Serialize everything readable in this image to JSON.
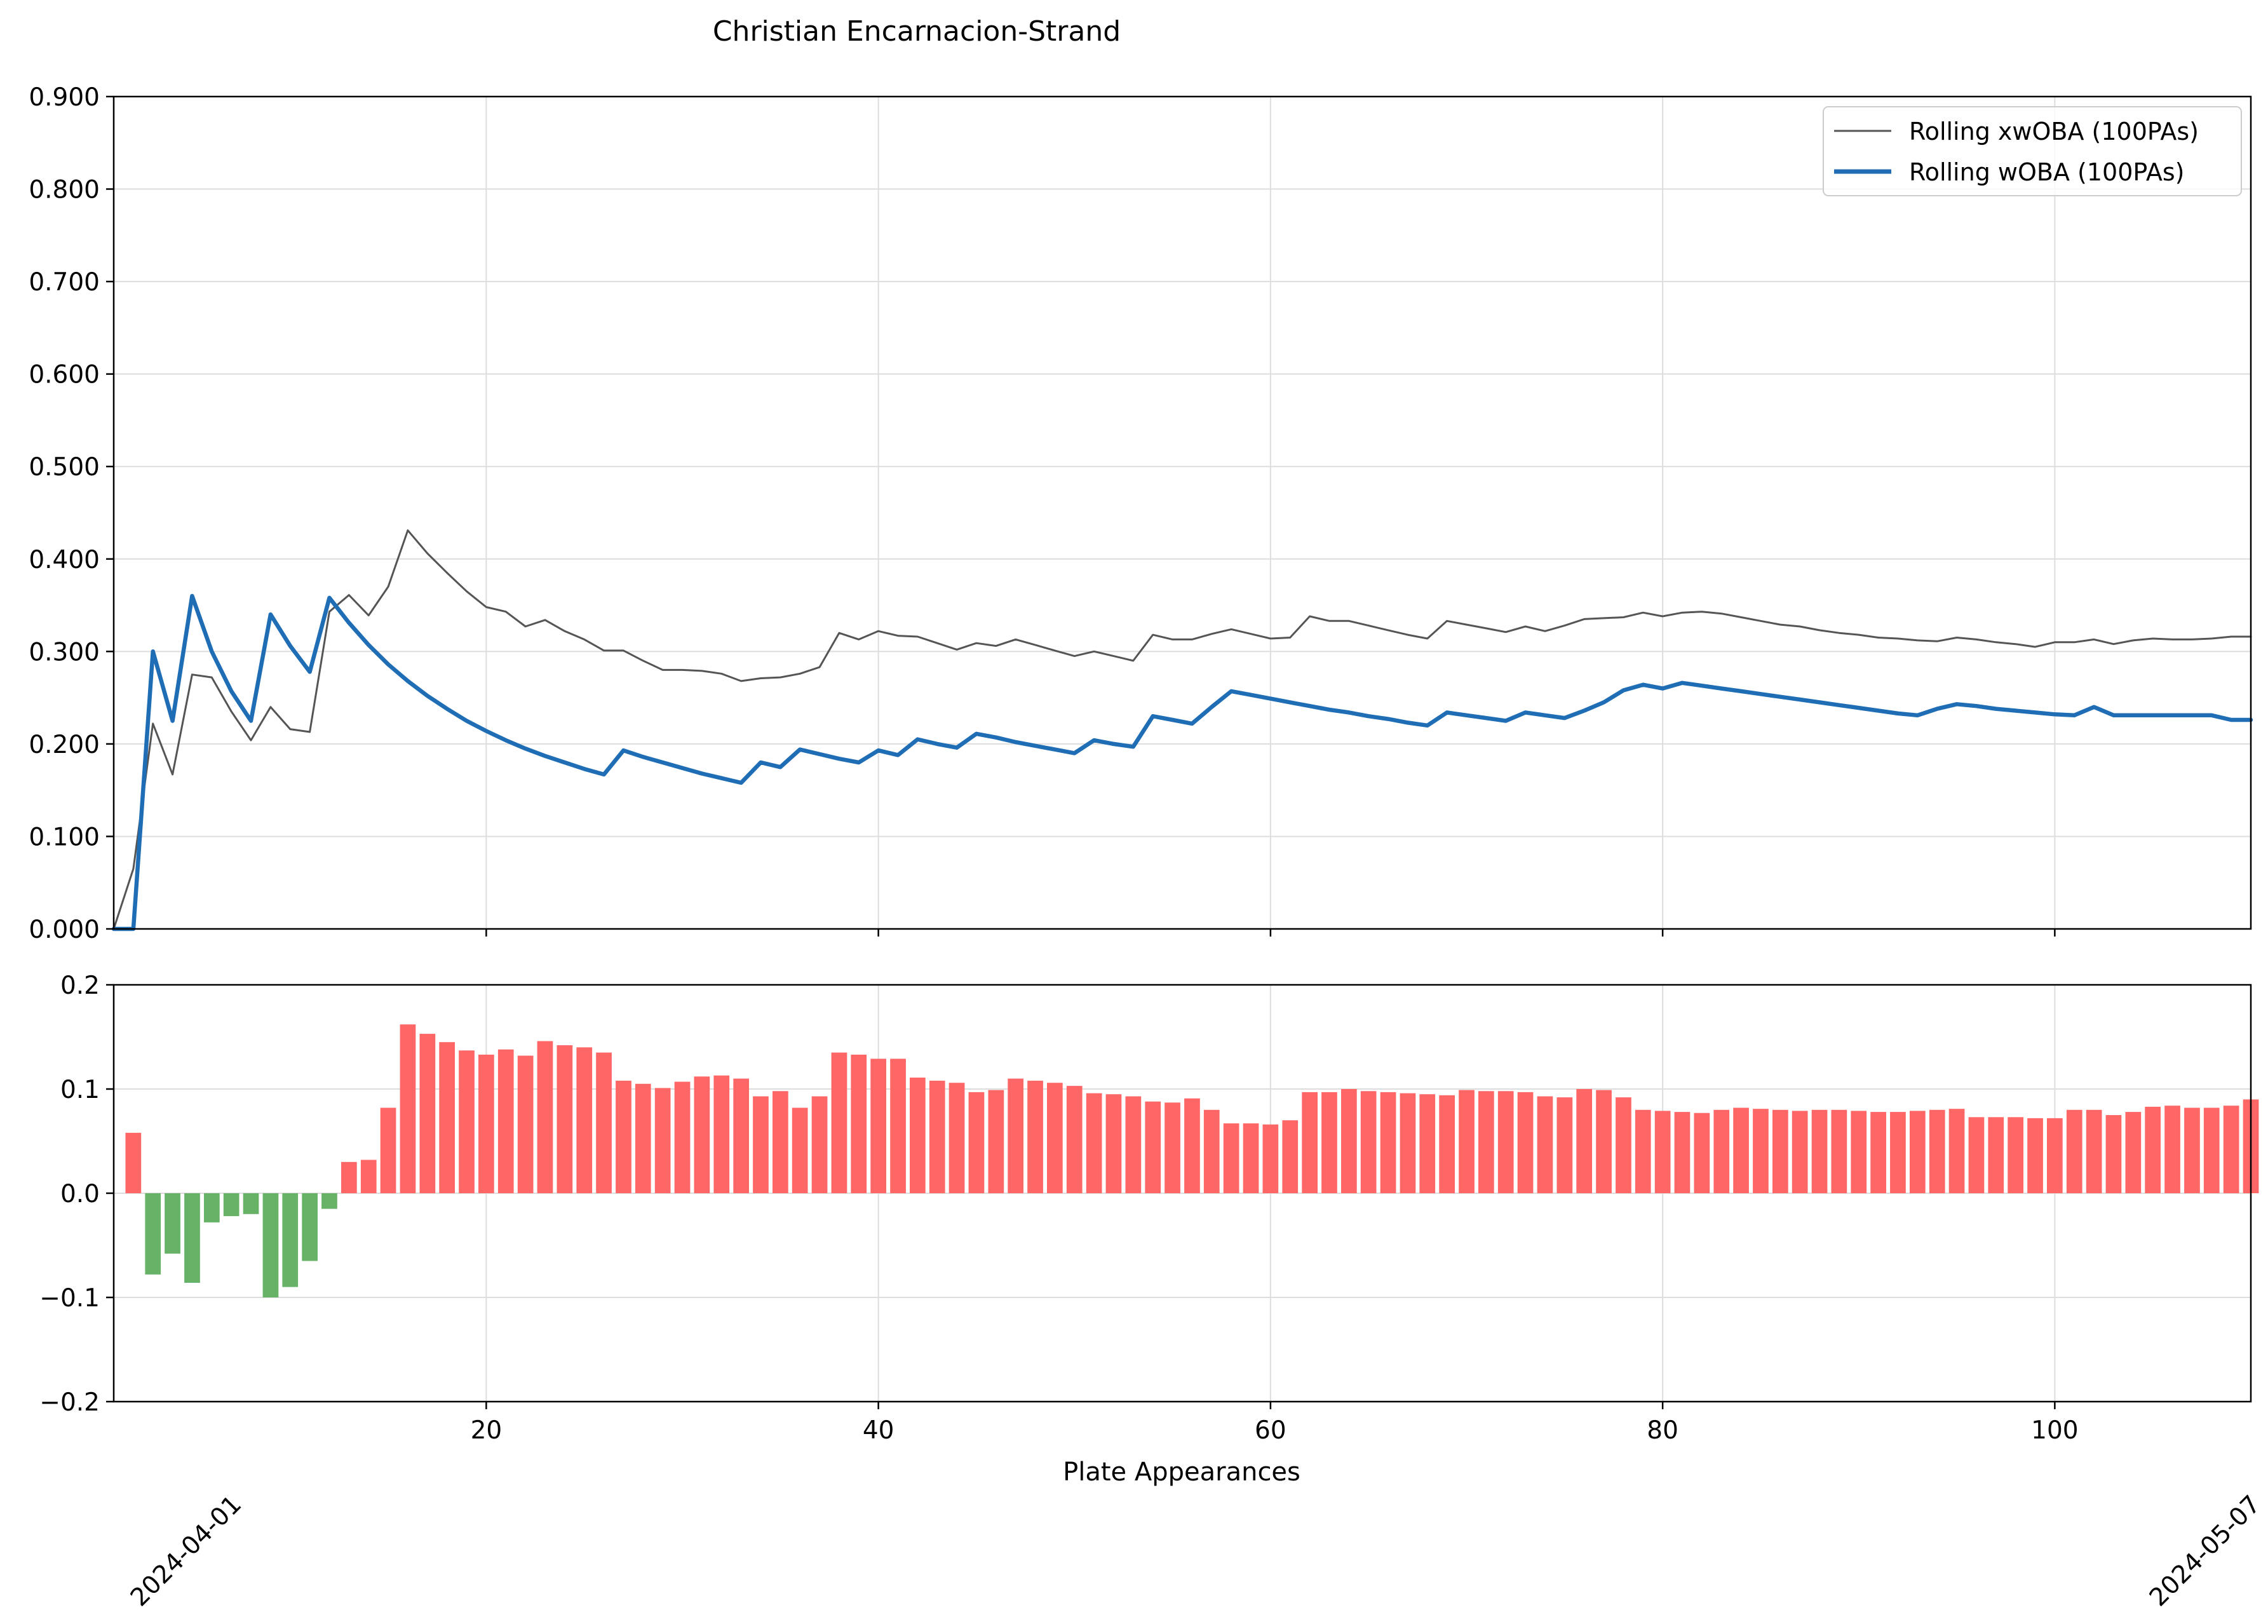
{
  "chart_data": [
    {
      "type": "line",
      "title": "Christian Encarnacion-Strand",
      "xlabel": "",
      "ylabel": "",
      "xlim": [
        1,
        110
      ],
      "ylim": [
        0,
        0.9
      ],
      "yticks": [
        0.0,
        0.1,
        0.2,
        0.3,
        0.4,
        0.5,
        0.6,
        0.7,
        0.8,
        0.9
      ],
      "ytick_labels": [
        "0.000",
        "0.100",
        "0.200",
        "0.300",
        "0.400",
        "0.500",
        "0.600",
        "0.700",
        "0.800",
        "0.900"
      ],
      "grid": true,
      "legend": "top-right",
      "series": [
        {
          "name": "Rolling xwOBA (100PAs)",
          "color": "#555555",
          "x": [
            1,
            2,
            3,
            4,
            5,
            6,
            7,
            8,
            9,
            10,
            11,
            12,
            13,
            14,
            15,
            16,
            17,
            18,
            19,
            20,
            21,
            22,
            23,
            24,
            25,
            26,
            27,
            28,
            29,
            30,
            31,
            32,
            33,
            34,
            35,
            36,
            37,
            38,
            39,
            40,
            41,
            42,
            43,
            44,
            45,
            46,
            47,
            48,
            49,
            50,
            51,
            52,
            53,
            54,
            55,
            56,
            57,
            58,
            59,
            60,
            61,
            62,
            63,
            64,
            65,
            66,
            67,
            68,
            69,
            70,
            71,
            72,
            73,
            74,
            75,
            76,
            77,
            78,
            79,
            80,
            81,
            82,
            83,
            84,
            85,
            86,
            87,
            88,
            89,
            90,
            91,
            92,
            93,
            94,
            95,
            96,
            97,
            98,
            99,
            100,
            101,
            102,
            103,
            104,
            105,
            106,
            107,
            108,
            109,
            110
          ],
          "y": [
            0.0,
            0.065,
            0.222,
            0.167,
            0.275,
            0.272,
            0.235,
            0.204,
            0.24,
            0.216,
            0.213,
            0.343,
            0.361,
            0.339,
            0.37,
            0.431,
            0.406,
            0.385,
            0.365,
            0.348,
            0.343,
            0.327,
            0.334,
            0.322,
            0.313,
            0.301,
            0.301,
            0.29,
            0.28,
            0.28,
            0.279,
            0.276,
            0.268,
            0.271,
            0.272,
            0.276,
            0.283,
            0.32,
            0.313,
            0.322,
            0.317,
            0.316,
            0.309,
            0.302,
            0.309,
            0.306,
            0.313,
            0.307,
            0.301,
            0.295,
            0.3,
            0.295,
            0.29,
            0.318,
            0.313,
            0.313,
            0.319,
            0.324,
            0.319,
            0.314,
            0.315,
            0.338,
            0.333,
            0.333,
            0.328,
            0.323,
            0.318,
            0.314,
            0.333,
            0.329,
            0.325,
            0.321,
            0.327,
            0.322,
            0.328,
            0.335,
            0.336,
            0.337,
            0.342,
            0.338,
            0.342,
            0.343,
            0.341,
            0.337,
            0.333,
            0.329,
            0.327,
            0.323,
            0.32,
            0.318,
            0.315,
            0.314,
            0.312,
            0.311,
            0.315,
            0.313,
            0.31,
            0.308,
            0.305,
            0.31,
            0.31,
            0.313,
            0.308,
            0.312,
            0.314,
            0.313,
            0.313,
            0.314,
            0.316,
            0.316
          ]
        },
        {
          "name": "Rolling wOBA (100PAs)",
          "color": "#1f6db5",
          "x": [
            1,
            2,
            3,
            4,
            5,
            6,
            7,
            8,
            9,
            10,
            11,
            12,
            13,
            14,
            15,
            16,
            17,
            18,
            19,
            20,
            21,
            22,
            23,
            24,
            25,
            26,
            27,
            28,
            29,
            30,
            31,
            32,
            33,
            34,
            35,
            36,
            37,
            38,
            39,
            40,
            41,
            42,
            43,
            44,
            45,
            46,
            47,
            48,
            49,
            50,
            51,
            52,
            53,
            54,
            55,
            56,
            57,
            58,
            59,
            60,
            61,
            62,
            63,
            64,
            65,
            66,
            67,
            68,
            69,
            70,
            71,
            72,
            73,
            74,
            75,
            76,
            77,
            78,
            79,
            80,
            81,
            82,
            83,
            84,
            85,
            86,
            87,
            88,
            89,
            90,
            91,
            92,
            93,
            94,
            95,
            96,
            97,
            98,
            99,
            100,
            101,
            102,
            103,
            104,
            105,
            106,
            107,
            108,
            109,
            110
          ],
          "y": [
            0.0,
            0.0,
            0.3,
            0.225,
            0.36,
            0.3,
            0.257,
            0.225,
            0.34,
            0.306,
            0.278,
            0.358,
            0.331,
            0.307,
            0.286,
            0.268,
            0.252,
            0.238,
            0.225,
            0.214,
            0.204,
            0.195,
            0.187,
            0.18,
            0.173,
            0.167,
            0.193,
            0.186,
            0.18,
            0.174,
            0.168,
            0.163,
            0.158,
            0.18,
            0.175,
            0.194,
            0.189,
            0.184,
            0.18,
            0.193,
            0.188,
            0.205,
            0.2,
            0.196,
            0.211,
            0.207,
            0.202,
            0.198,
            0.194,
            0.19,
            0.204,
            0.2,
            0.197,
            0.23,
            0.226,
            0.222,
            0.24,
            0.257,
            0.253,
            0.249,
            0.245,
            0.241,
            0.237,
            0.234,
            0.23,
            0.227,
            0.223,
            0.22,
            0.234,
            0.231,
            0.228,
            0.225,
            0.234,
            0.231,
            0.228,
            0.236,
            0.245,
            0.258,
            0.264,
            0.26,
            0.266,
            0.263,
            0.26,
            0.257,
            0.254,
            0.251,
            0.248,
            0.245,
            0.242,
            0.239,
            0.236,
            0.233,
            0.231,
            0.238,
            0.243,
            0.241,
            0.238,
            0.236,
            0.234,
            0.232,
            0.231,
            0.24,
            0.231,
            0.231,
            0.231,
            0.231,
            0.231,
            0.231,
            0.226,
            0.226
          ]
        }
      ]
    },
    {
      "type": "bar",
      "xlabel": "Plate Appearances",
      "ylabel": "",
      "xlim": [
        1,
        110
      ],
      "ylim": [
        -0.2,
        0.2
      ],
      "yticks": [
        -0.2,
        -0.1,
        0.0,
        0.1,
        0.2
      ],
      "ytick_labels": [
        "−0.2",
        "−0.1",
        "0.0",
        "0.1",
        "0.2"
      ],
      "xticks": [
        20,
        40,
        60,
        80,
        100
      ],
      "xtick_labels": [
        "20",
        "40",
        "60",
        "80",
        "100"
      ],
      "grid": true,
      "positive_color": "#ff6666",
      "negative_color": "#66b266",
      "x": [
        2,
        3,
        4,
        5,
        6,
        7,
        8,
        9,
        10,
        11,
        12,
        13,
        14,
        15,
        16,
        17,
        18,
        19,
        20,
        21,
        22,
        23,
        24,
        25,
        26,
        27,
        28,
        29,
        30,
        31,
        32,
        33,
        34,
        35,
        36,
        37,
        38,
        39,
        40,
        41,
        42,
        43,
        44,
        45,
        46,
        47,
        48,
        49,
        50,
        51,
        52,
        53,
        54,
        55,
        56,
        57,
        58,
        59,
        60,
        61,
        62,
        63,
        64,
        65,
        66,
        67,
        68,
        69,
        70,
        71,
        72,
        73,
        74,
        75,
        76,
        77,
        78,
        79,
        80,
        81,
        82,
        83,
        84,
        85,
        86,
        87,
        88,
        89,
        90,
        91,
        92,
        93,
        94,
        95,
        96,
        97,
        98,
        99,
        100,
        101,
        102,
        103,
        104,
        105,
        106,
        107,
        108,
        109,
        110
      ],
      "values": [
        0.058,
        -0.078,
        -0.058,
        -0.086,
        -0.028,
        -0.022,
        -0.02,
        -0.1,
        -0.09,
        -0.065,
        -0.015,
        0.03,
        0.032,
        0.082,
        0.162,
        0.153,
        0.145,
        0.137,
        0.133,
        0.138,
        0.132,
        0.146,
        0.142,
        0.14,
        0.135,
        0.108,
        0.105,
        0.101,
        0.107,
        0.112,
        0.113,
        0.11,
        0.093,
        0.098,
        0.082,
        0.093,
        0.135,
        0.133,
        0.129,
        0.129,
        0.111,
        0.108,
        0.106,
        0.097,
        0.099,
        0.11,
        0.108,
        0.106,
        0.103,
        0.096,
        0.095,
        0.093,
        0.088,
        0.087,
        0.091,
        0.08,
        0.067,
        0.067,
        0.066,
        0.07,
        0.097,
        0.097,
        0.1,
        0.098,
        0.097,
        0.096,
        0.095,
        0.094,
        0.099,
        0.098,
        0.098,
        0.097,
        0.093,
        0.092,
        0.1,
        0.099,
        0.092,
        0.08,
        0.079,
        0.078,
        0.077,
        0.08,
        0.082,
        0.081,
        0.08,
        0.079,
        0.08,
        0.08,
        0.079,
        0.078,
        0.078,
        0.079,
        0.08,
        0.081,
        0.073,
        0.073,
        0.073,
        0.072,
        0.072,
        0.08,
        0.08,
        0.075,
        0.078,
        0.083,
        0.084,
        0.082,
        0.082,
        0.084,
        0.09
      ]
    }
  ],
  "date_labels": [
    "2024-04-01",
    "2024-05-07"
  ]
}
